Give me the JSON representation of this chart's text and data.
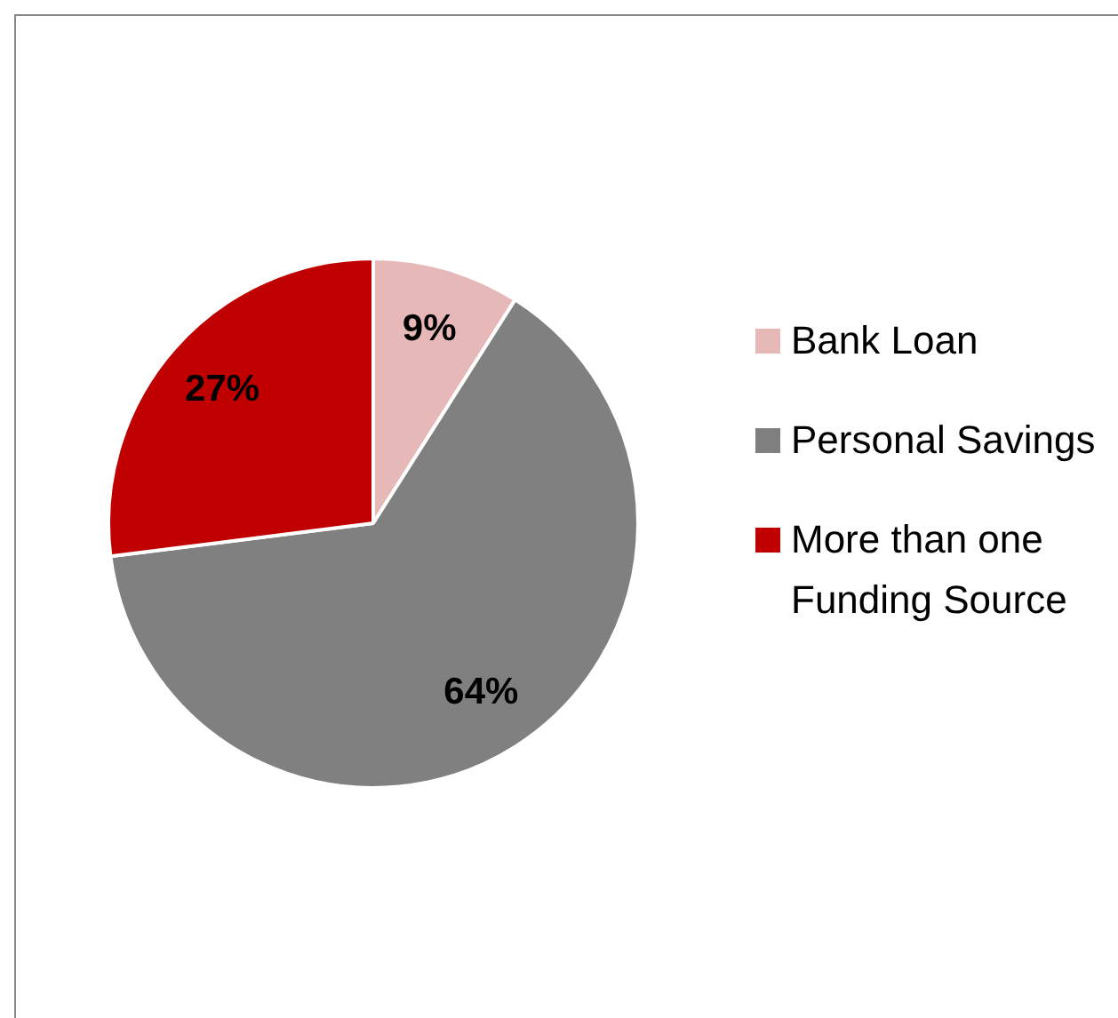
{
  "chart_data": {
    "type": "pie",
    "categories": [
      "Bank Loan",
      "Personal Savings",
      "More than one Funding Source"
    ],
    "values": [
      9,
      64,
      27
    ],
    "colors": [
      "#e6b9b8",
      "#808080",
      "#c00000"
    ],
    "value_labels": [
      "9%",
      "64%",
      "27%"
    ],
    "legend": "right"
  }
}
